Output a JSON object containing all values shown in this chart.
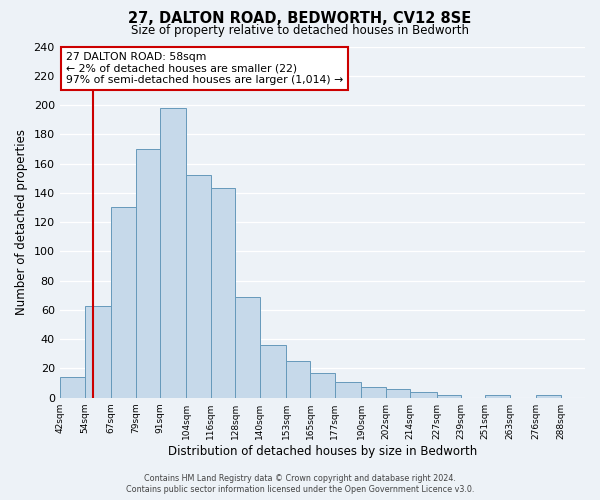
{
  "title": "27, DALTON ROAD, BEDWORTH, CV12 8SE",
  "subtitle": "Size of property relative to detached houses in Bedworth",
  "xlabel": "Distribution of detached houses by size in Bedworth",
  "ylabel": "Number of detached properties",
  "bin_edges": [
    42,
    54,
    67,
    79,
    91,
    104,
    116,
    128,
    140,
    153,
    165,
    177,
    190,
    202,
    214,
    227,
    239,
    251,
    263,
    276,
    288
  ],
  "bar_heights": [
    14,
    63,
    130,
    170,
    198,
    152,
    143,
    69,
    36,
    25,
    17,
    11,
    7,
    6,
    4,
    2,
    0,
    2,
    0,
    2
  ],
  "bar_color": "#c6d9ea",
  "bar_edge_color": "#6699bb",
  "bar_edge_width": 0.7,
  "property_line_x": 58,
  "property_line_color": "#cc0000",
  "ylim": [
    0,
    240
  ],
  "yticks": [
    0,
    20,
    40,
    60,
    80,
    100,
    120,
    140,
    160,
    180,
    200,
    220,
    240
  ],
  "annotation_title": "27 DALTON ROAD: 58sqm",
  "annotation_line1": "← 2% of detached houses are smaller (22)",
  "annotation_line2": "97% of semi-detached houses are larger (1,014) →",
  "x_tick_labels": [
    "42sqm",
    "54sqm",
    "67sqm",
    "79sqm",
    "91sqm",
    "104sqm",
    "116sqm",
    "128sqm",
    "140sqm",
    "153sqm",
    "165sqm",
    "177sqm",
    "190sqm",
    "202sqm",
    "214sqm",
    "227sqm",
    "239sqm",
    "251sqm",
    "263sqm",
    "276sqm",
    "288sqm"
  ],
  "background_color": "#edf2f7",
  "grid_color": "#ffffff",
  "footer_line1": "Contains HM Land Registry data © Crown copyright and database right 2024.",
  "footer_line2": "Contains public sector information licensed under the Open Government Licence v3.0."
}
